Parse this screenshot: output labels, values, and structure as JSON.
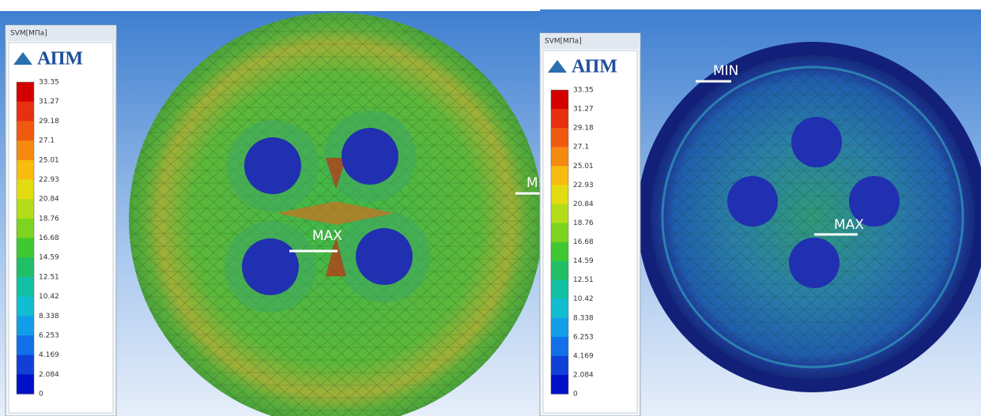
{
  "panels": [
    {
      "legend": {
        "title": "SVM[МПа]",
        "logo": "АПМ",
        "scale": [
          "33.35",
          "31.27",
          "29.18",
          "27.1",
          "25.01",
          "22.93",
          "20.84",
          "18.76",
          "16.68",
          "14.59",
          "12.51",
          "10.42",
          "8.338",
          "6.253",
          "4.169",
          "2.084",
          "0"
        ]
      },
      "markers": [
        "MAX",
        "MI"
      ]
    },
    {
      "legend": {
        "title": "SVM[МПа]",
        "logo": "АПМ",
        "scale": [
          "33.35",
          "31.27",
          "29.18",
          "27.1",
          "25.01",
          "22.93",
          "20.84",
          "18.76",
          "16.68",
          "14.59",
          "12.51",
          "10.42",
          "8.338",
          "6.253",
          "4.169",
          "2.084",
          "0"
        ]
      },
      "markers": [
        "MIN",
        "MAX"
      ]
    }
  ]
}
